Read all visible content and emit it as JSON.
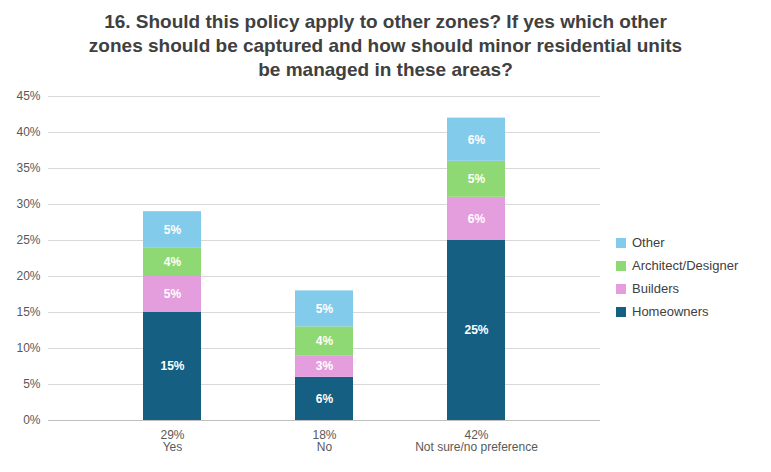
{
  "chart_data": {
    "type": "bar",
    "title": "16. Should this policy apply to other zones? If yes which other zones should be captured and how should minor residential units be managed in these areas?",
    "categories": [
      "Yes",
      "No",
      "Not sure/no preference"
    ],
    "totals": [
      29,
      18,
      42
    ],
    "total_labels": [
      "29%",
      "18%",
      "42%"
    ],
    "series": [
      {
        "name": "Homeowners",
        "color": "#156082",
        "values": [
          15,
          6,
          25
        ],
        "value_labels": [
          "15%",
          "6%",
          "25%"
        ]
      },
      {
        "name": "Builders",
        "color": "#e49edd",
        "values": [
          5,
          3,
          6
        ],
        "value_labels": [
          "5%",
          "3%",
          "6%"
        ]
      },
      {
        "name": "Architect/Designer",
        "color": "#8ed973",
        "values": [
          4,
          4,
          5
        ],
        "value_labels": [
          "4%",
          "4%",
          "5%"
        ]
      },
      {
        "name": "Other",
        "color": "#83cbeb",
        "values": [
          5,
          5,
          6
        ],
        "value_labels": [
          "5%",
          "5%",
          "6%"
        ]
      }
    ],
    "ylim": [
      0,
      45
    ],
    "yticks": [
      {
        "value": 0,
        "label": "0%"
      },
      {
        "value": 5,
        "label": "5%"
      },
      {
        "value": 10,
        "label": "10%"
      },
      {
        "value": 15,
        "label": "15%"
      },
      {
        "value": 20,
        "label": "20%"
      },
      {
        "value": 25,
        "label": "25%"
      },
      {
        "value": 30,
        "label": "30%"
      },
      {
        "value": 35,
        "label": "35%"
      },
      {
        "value": 40,
        "label": "40%"
      },
      {
        "value": 45,
        "label": "45%"
      }
    ],
    "grid": true,
    "stacked": true,
    "data_labels": true,
    "legend": "right"
  }
}
